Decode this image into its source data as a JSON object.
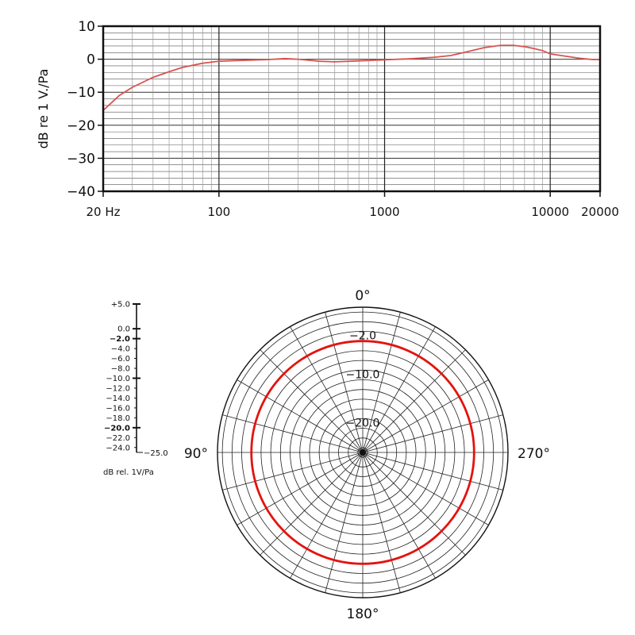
{
  "chart_data": [
    {
      "type": "line",
      "ylabel": "dB re 1 V./Pa",
      "xscale": "log",
      "xlim": [
        20,
        20000
      ],
      "ylim": [
        -40,
        10
      ],
      "grid": true,
      "yticks": [
        {
          "value": 10,
          "label": "10"
        },
        {
          "value": 0,
          "label": "0"
        },
        {
          "value": -10,
          "label": "−10"
        },
        {
          "value": -20,
          "label": "−20"
        },
        {
          "value": -30,
          "label": "−30"
        },
        {
          "value": -40,
          "label": "−40"
        }
      ],
      "xticks": [
        {
          "value": 20,
          "label": "20 Hz"
        },
        {
          "value": 100,
          "label": "100"
        },
        {
          "value": 1000,
          "label": "1000"
        },
        {
          "value": 10000,
          "label": "10000"
        },
        {
          "value": 20000,
          "label": "20000"
        }
      ],
      "series": [
        {
          "color": "#d9534f",
          "points": [
            [
              20,
              -15.5
            ],
            [
              25,
              -11
            ],
            [
              30,
              -8.5
            ],
            [
              40,
              -5.5
            ],
            [
              50,
              -3.8
            ],
            [
              60,
              -2.5
            ],
            [
              80,
              -1.2
            ],
            [
              100,
              -0.6
            ],
            [
              150,
              -0.3
            ],
            [
              200,
              -0.1
            ],
            [
              250,
              0.2
            ],
            [
              300,
              0.0
            ],
            [
              400,
              -0.6
            ],
            [
              500,
              -0.8
            ],
            [
              700,
              -0.5
            ],
            [
              1000,
              -0.2
            ],
            [
              1500,
              0.2
            ],
            [
              2000,
              0.6
            ],
            [
              2500,
              1.1
            ],
            [
              3000,
              2.0
            ],
            [
              4000,
              3.5
            ],
            [
              5000,
              4.2
            ],
            [
              6000,
              4.2
            ],
            [
              7000,
              3.8
            ],
            [
              8000,
              3.2
            ],
            [
              9000,
              2.6
            ],
            [
              10000,
              1.6
            ],
            [
              12000,
              1.0
            ],
            [
              15000,
              0.3
            ],
            [
              18000,
              -0.1
            ],
            [
              20000,
              -0.1
            ]
          ]
        }
      ]
    },
    {
      "type": "polar",
      "units_label": "dB rel. 1V/Pa",
      "rlim": [
        -25,
        5
      ],
      "angle_labels": [
        {
          "angle": 0,
          "label": "0°"
        },
        {
          "angle": 90,
          "label": "90°"
        },
        {
          "angle": 180,
          "label": "180°"
        },
        {
          "angle": 270,
          "label": "270°"
        }
      ],
      "radial_labels": [
        {
          "value": -2,
          "label": "−2.0"
        },
        {
          "value": -10,
          "label": "−10.0"
        },
        {
          "value": -20,
          "label": "−20.0"
        }
      ],
      "scale_labels": [
        {
          "value": 5,
          "label": "+5.0",
          "bold": false
        },
        {
          "value": 0,
          "label": "0.0",
          "bold": false
        },
        {
          "value": -2,
          "label": "−2.0",
          "bold": true
        },
        {
          "value": -4,
          "label": "−4.0",
          "bold": false
        },
        {
          "value": -6,
          "label": "−6.0",
          "bold": false
        },
        {
          "value": -8,
          "label": "−8.0",
          "bold": false
        },
        {
          "value": -10,
          "label": "−10.0",
          "bold": false
        },
        {
          "value": -12,
          "label": "−12.0",
          "bold": false
        },
        {
          "value": -14,
          "label": "−14.0",
          "bold": false
        },
        {
          "value": -16,
          "label": "−16.0",
          "bold": false
        },
        {
          "value": -18,
          "label": "−18.0",
          "bold": false
        },
        {
          "value": -20,
          "label": "−20.0",
          "bold": true
        },
        {
          "value": -22,
          "label": "−22.0",
          "bold": false
        },
        {
          "value": -24,
          "label": "−24.0",
          "bold": false
        },
        {
          "value": -25,
          "label": "−25.0",
          "bold": false
        }
      ],
      "pattern": {
        "shape": "omnidirectional",
        "level_db": -2,
        "color": "#e3130f"
      }
    }
  ]
}
